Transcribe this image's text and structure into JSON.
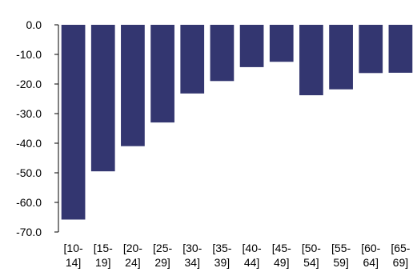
{
  "chart_data": {
    "type": "bar",
    "title": "",
    "xlabel": "",
    "ylabel": "",
    "categories": [
      {
        "line1": "[10-",
        "line2": "14]"
      },
      {
        "line1": "[15-",
        "line2": "19]"
      },
      {
        "line1": "[20-",
        "line2": "24]"
      },
      {
        "line1": "[25-",
        "line2": "29]"
      },
      {
        "line1": "[30-",
        "line2": "34]"
      },
      {
        "line1": "[35-",
        "line2": "39]"
      },
      {
        "line1": "[40-",
        "line2": "44]"
      },
      {
        "line1": "[45-",
        "line2": "49]"
      },
      {
        "line1": "[50-",
        "line2": "54]"
      },
      {
        "line1": "[55-",
        "line2": "59]"
      },
      {
        "line1": "[60-",
        "line2": "64]"
      },
      {
        "line1": "[65-",
        "line2": "69]"
      }
    ],
    "values": [
      -65.8,
      -49.5,
      -41.0,
      -33.0,
      -23.2,
      -19.0,
      -14.3,
      -12.5,
      -23.8,
      -21.8,
      -16.3,
      -16.2
    ],
    "ylim": [
      -70,
      0
    ],
    "yticks": [
      "0.0",
      "-10.0",
      "-20.0",
      "-30.0",
      "-40.0",
      "-50.0",
      "-60.0",
      "-70.0"
    ],
    "ytick_values": [
      0,
      -10,
      -20,
      -30,
      -40,
      -50,
      -60,
      -70
    ],
    "grid": false,
    "legend": "none",
    "bar_color": "#333670"
  }
}
